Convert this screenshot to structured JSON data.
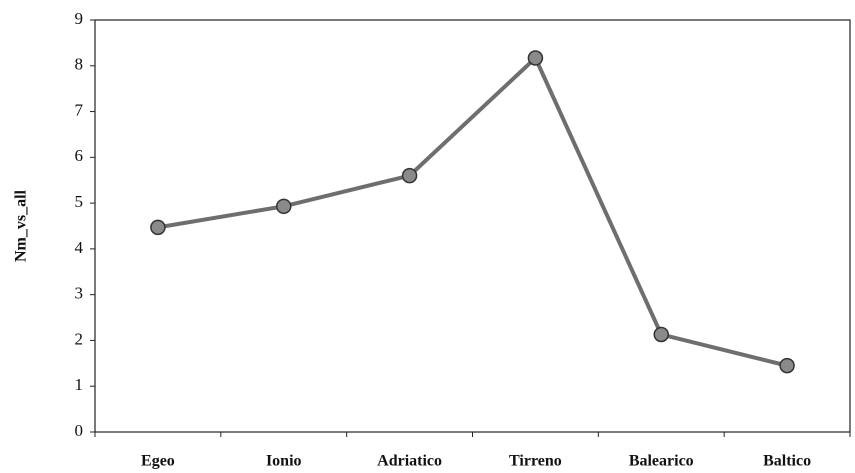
{
  "chart_data": {
    "type": "line",
    "y_label": "Nm_vs_all",
    "categories": [
      "Egeo",
      "Ionio",
      "Adriatico",
      "Tirreno",
      "Balearico",
      "Baltico"
    ],
    "values": [
      4.47,
      4.93,
      5.6,
      8.17,
      2.13,
      1.45
    ],
    "color": "#6e6e6e",
    "marker_color": "#8a8a8a",
    "ylim": [
      0,
      9
    ],
    "yticks": [
      0,
      1,
      2,
      3,
      4,
      5,
      6,
      7,
      8,
      9
    ],
    "grid": false
  }
}
